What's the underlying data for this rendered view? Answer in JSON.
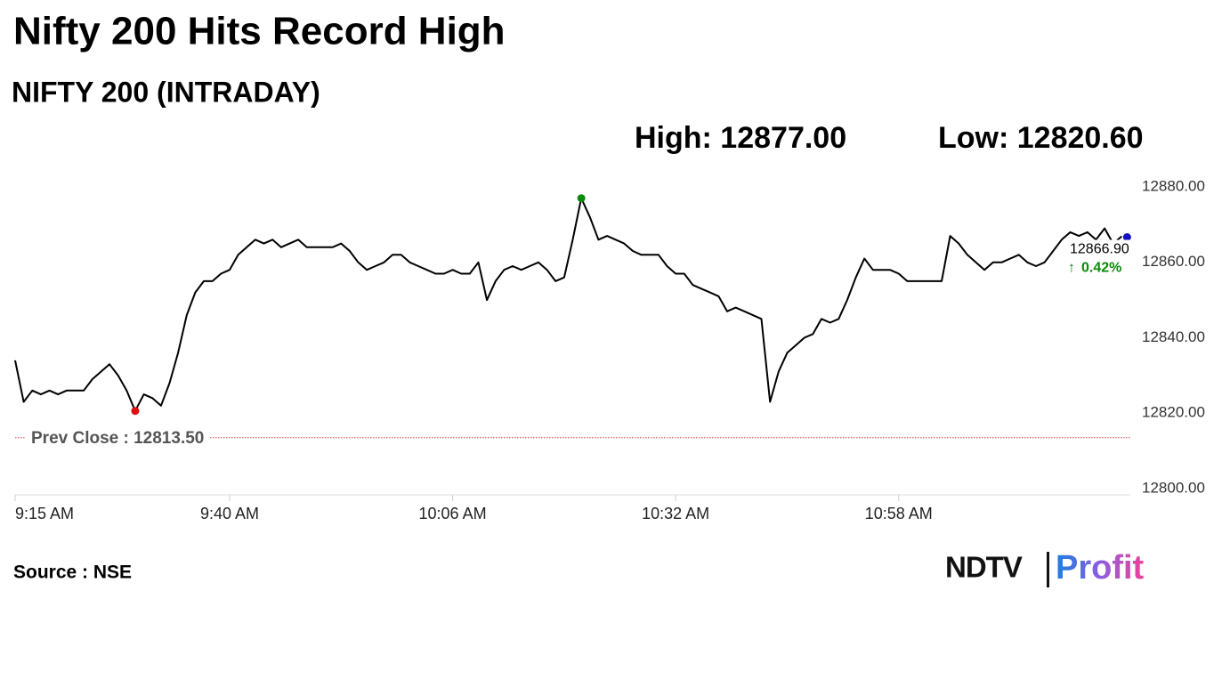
{
  "chart_data": {
    "type": "line",
    "title": "Nifty 200 Hits Record High",
    "subtitle": "NIFTY 200 (INTRADAY)",
    "high_label": "High: 12877.00",
    "low_label": "Low: 12820.60",
    "color": "#000000",
    "x": [
      "9:15 AM",
      "9:16 AM",
      "9:17 AM",
      "9:18 AM",
      "9:19 AM",
      "9:20 AM",
      "9:21 AM",
      "9:22 AM",
      "9:23 AM",
      "9:24 AM",
      "9:25 AM",
      "9:26 AM",
      "9:27 AM",
      "9:28 AM",
      "9:29 AM",
      "9:30 AM",
      "9:31 AM",
      "9:32 AM",
      "9:33 AM",
      "9:34 AM",
      "9:35 AM",
      "9:36 AM",
      "9:37 AM",
      "9:38 AM",
      "9:39 AM",
      "9:40 AM",
      "9:41 AM",
      "9:42 AM",
      "9:43 AM",
      "9:44 AM",
      "9:45 AM",
      "9:46 AM",
      "9:47 AM",
      "9:48 AM",
      "9:49 AM",
      "9:50 AM",
      "9:51 AM",
      "9:52 AM",
      "9:53 AM",
      "9:54 AM",
      "9:55 AM",
      "9:56 AM",
      "9:57 AM",
      "9:58 AM",
      "9:59 AM",
      "10:00 AM",
      "10:01 AM",
      "10:02 AM",
      "10:03 AM",
      "10:04 AM",
      "10:05 AM",
      "10:06 AM",
      "10:07 AM",
      "10:08 AM",
      "10:09 AM",
      "10:10 AM",
      "10:11 AM",
      "10:12 AM",
      "10:13 AM",
      "10:14 AM",
      "10:15 AM",
      "10:16 AM",
      "10:17 AM",
      "10:18 AM",
      "10:19 AM",
      "10:20 AM",
      "10:21 AM",
      "10:22 AM",
      "10:23 AM",
      "10:24 AM",
      "10:25 AM",
      "10:26 AM",
      "10:27 AM",
      "10:28 AM",
      "10:29 AM",
      "10:30 AM",
      "10:31 AM",
      "10:32 AM",
      "10:33 AM",
      "10:34 AM",
      "10:35 AM",
      "10:36 AM",
      "10:37 AM",
      "10:38 AM",
      "10:39 AM",
      "10:40 AM",
      "10:41 AM",
      "10:42 AM",
      "10:43 AM",
      "10:44 AM",
      "10:45 AM",
      "10:46 AM",
      "10:47 AM",
      "10:48 AM",
      "10:49 AM",
      "10:50 AM",
      "10:51 AM",
      "10:52 AM",
      "10:53 AM",
      "10:54 AM",
      "10:55 AM",
      "10:56 AM",
      "10:57 AM",
      "10:58 AM",
      "10:59 AM",
      "11:00 AM",
      "11:01 AM",
      "11:02 AM",
      "11:03 AM",
      "11:04 AM",
      "11:05 AM",
      "11:06 AM",
      "11:07 AM",
      "11:08 AM",
      "11:09 AM",
      "11:10 AM",
      "11:11 AM",
      "11:12 AM",
      "11:13 AM",
      "11:14 AM",
      "11:15 AM",
      "11:16 AM",
      "11:17 AM",
      "11:18 AM",
      "11:19 AM",
      "11:20 AM",
      "11:21 AM",
      "11:22 AM",
      "11:23 AM",
      "11:24 AM"
    ],
    "values": [
      12834,
      12823,
      12826,
      12825,
      12826,
      12825,
      12826,
      12826,
      12826,
      12829,
      12831,
      12833,
      12830,
      12826,
      12820.6,
      12825,
      12824,
      12822,
      12828,
      12836,
      12846,
      12852,
      12855,
      12855,
      12857,
      12858,
      12862,
      12864,
      12866,
      12865,
      12866,
      12864,
      12865,
      12866,
      12864,
      12864,
      12864,
      12864,
      12865,
      12863,
      12860,
      12858,
      12859,
      12860,
      12862,
      12862,
      12860,
      12859,
      12858,
      12857,
      12857,
      12858,
      12857,
      12857,
      12860,
      12850,
      12855,
      12858,
      12859,
      12858,
      12859,
      12860,
      12858,
      12855,
      12856,
      12866,
      12877,
      12872,
      12866,
      12867,
      12866,
      12865,
      12863,
      12862,
      12862,
      12862,
      12859,
      12857,
      12857,
      12854,
      12853,
      12852,
      12851,
      12847,
      12848,
      12847,
      12846,
      12845,
      12823,
      12831,
      12836,
      12838,
      12840,
      12841,
      12845,
      12844,
      12845,
      12850,
      12856,
      12861,
      12858,
      12858,
      12858,
      12857,
      12855,
      12855,
      12855,
      12855,
      12855,
      12867,
      12865,
      12862,
      12860,
      12858,
      12860,
      12860,
      12861,
      12862,
      12860,
      12859,
      12860,
      12863,
      12866,
      12868,
      12867,
      12868,
      12866,
      12869,
      12865,
      12866.9
    ],
    "last_label": "12866.90",
    "change_label": "0.42%",
    "prev_close": 12813.5,
    "prev_close_label": "Prev Close : 12813.50",
    "xlim": [
      "9:15 AM",
      "11:25 AM"
    ],
    "xticks": [
      "9:15 AM",
      "9:40 AM",
      "10:06 AM",
      "10:32 AM",
      "10:58 AM"
    ],
    "ylim": [
      12800,
      12880
    ],
    "yticks": [
      {
        "value": 12800,
        "label": "12800.00"
      },
      {
        "value": 12820,
        "label": "12820.00"
      },
      {
        "value": 12840,
        "label": "12840.00"
      },
      {
        "value": 12860,
        "label": "12860.00"
      },
      {
        "value": 12880,
        "label": "12880.00"
      }
    ],
    "source": "Source : NSE",
    "logo": {
      "brand": "NDTV",
      "product": "Profit"
    }
  }
}
